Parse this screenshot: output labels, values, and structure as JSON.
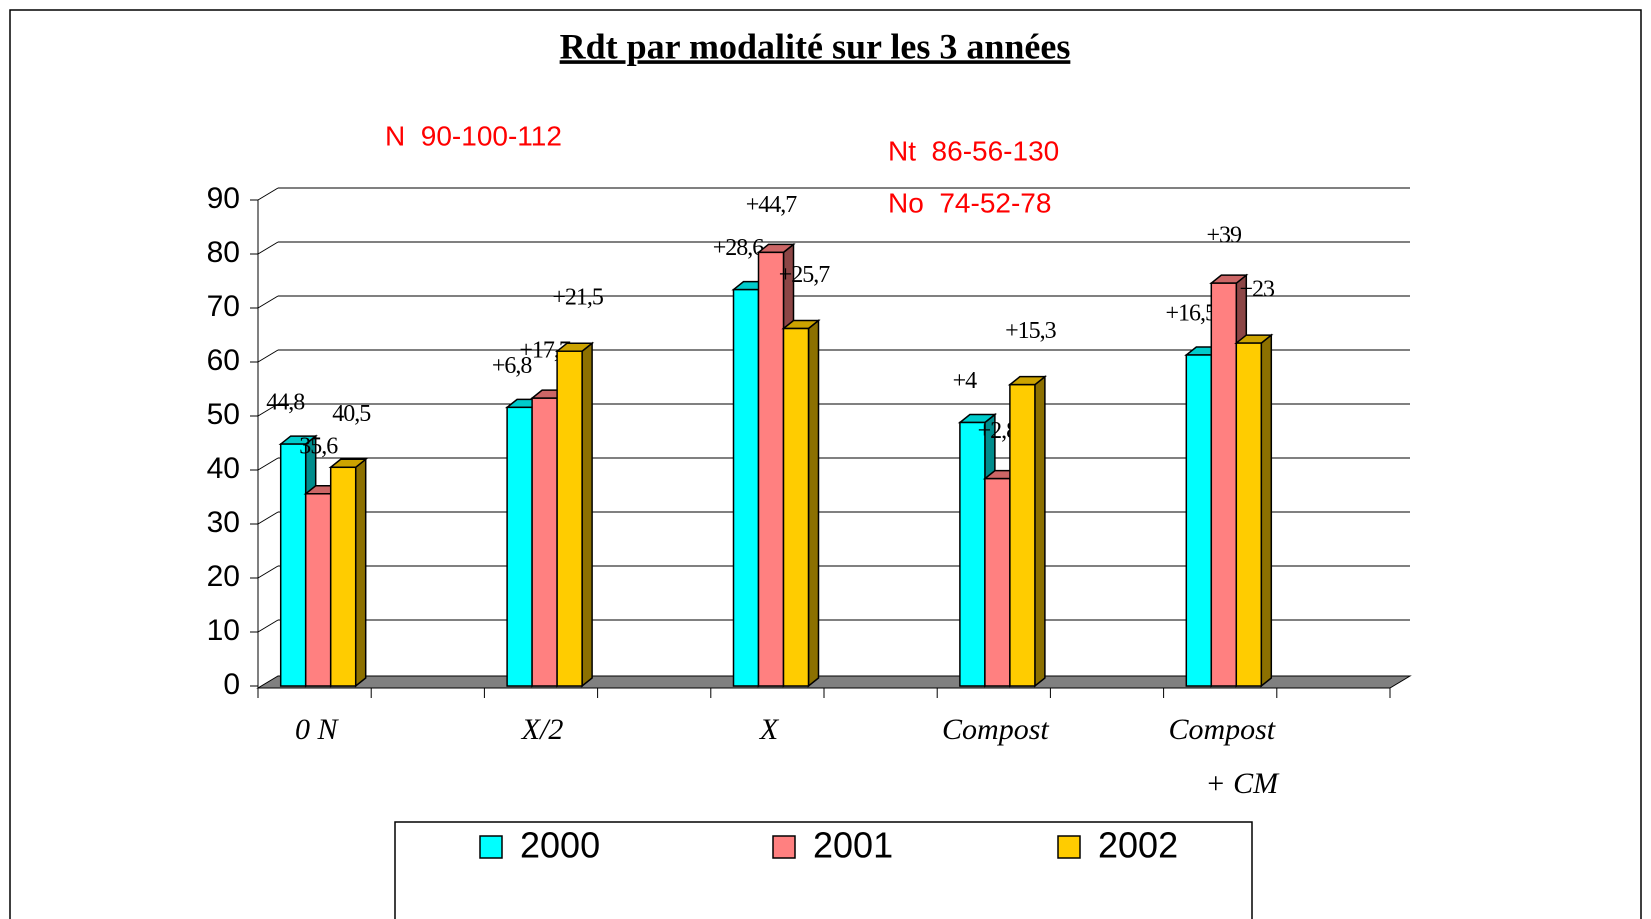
{
  "chart_data": {
    "type": "bar3d",
    "title": "Rdt par modalité sur les 3 années",
    "annotations": [
      "N  90-100-112",
      "Nt  86-56-130",
      "No  74-52-78"
    ],
    "categories": [
      "0 N",
      "X/2",
      "X",
      "Compost",
      [
        "Compost",
        "+ CM"
      ]
    ],
    "series": [
      {
        "name": "2000",
        "color": "#00ffff",
        "values": [
          44.8,
          51.6,
          73.4,
          48.8,
          61.3
        ],
        "annotations": [
          "44,8",
          "+6,8",
          "+28,6",
          "+4",
          "+16,5"
        ]
      },
      {
        "name": "2001",
        "color": "#ff8080",
        "values": [
          35.6,
          53.3,
          80.3,
          38.4,
          74.6
        ],
        "annotations": [
          "35,6",
          "+17,7",
          "+44,7",
          "+2,8",
          "+39"
        ]
      },
      {
        "name": "2002",
        "color": "#ffcc00",
        "values": [
          40.5,
          62,
          66.2,
          55.8,
          63.5
        ],
        "annotations": [
          "40,5",
          "+21,5",
          "+25,7",
          "+15,3",
          "+23"
        ]
      }
    ],
    "ylim": [
      0,
      90
    ],
    "yticks": [
      0,
      10,
      20,
      30,
      40,
      50,
      60,
      70,
      80,
      90
    ],
    "grid": true,
    "legend": "bottom"
  }
}
